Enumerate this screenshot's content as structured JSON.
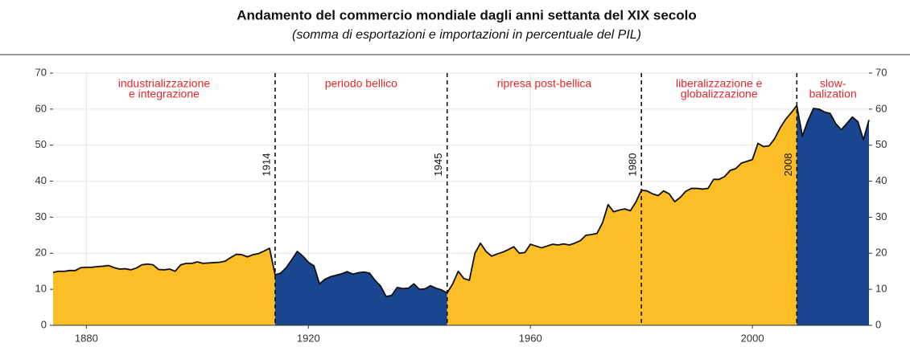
{
  "chart_data": {
    "type": "area",
    "title": "Andamento del commercio mondiale dagli anni settanta del XIX secolo",
    "subtitle": "(somma di esportazioni e importazioni in percentuale del PIL)",
    "x": [
      1874,
      1875,
      1876,
      1877,
      1878,
      1879,
      1880,
      1881,
      1882,
      1883,
      1884,
      1885,
      1886,
      1887,
      1888,
      1889,
      1890,
      1891,
      1892,
      1893,
      1894,
      1895,
      1896,
      1897,
      1898,
      1899,
      1900,
      1901,
      1902,
      1903,
      1904,
      1905,
      1906,
      1907,
      1908,
      1909,
      1910,
      1911,
      1912,
      1913,
      1914,
      1915,
      1916,
      1917,
      1918,
      1919,
      1920,
      1921,
      1922,
      1923,
      1924,
      1925,
      1926,
      1927,
      1928,
      1929,
      1930,
      1931,
      1932,
      1933,
      1934,
      1935,
      1936,
      1937,
      1938,
      1939,
      1940,
      1941,
      1942,
      1943,
      1944,
      1945,
      1946,
      1947,
      1948,
      1949,
      1950,
      1951,
      1952,
      1953,
      1954,
      1955,
      1956,
      1957,
      1958,
      1959,
      1960,
      1961,
      1962,
      1963,
      1964,
      1965,
      1966,
      1967,
      1968,
      1969,
      1970,
      1971,
      1972,
      1973,
      1974,
      1975,
      1976,
      1977,
      1978,
      1979,
      1980,
      1981,
      1982,
      1983,
      1984,
      1985,
      1986,
      1987,
      1988,
      1989,
      1990,
      1991,
      1992,
      1993,
      1994,
      1995,
      1996,
      1997,
      1998,
      1999,
      2000,
      2001,
      2002,
      2003,
      2004,
      2005,
      2006,
      2007,
      2008,
      2009,
      2010,
      2011,
      2012,
      2013,
      2014,
      2015,
      2016,
      2017,
      2018,
      2019,
      2020,
      2021
    ],
    "values": [
      14.7,
      15,
      15,
      15.2,
      15.2,
      16,
      16.1,
      16.1,
      16.3,
      16.4,
      16.6,
      16.0,
      15.6,
      15.7,
      15.4,
      15.9,
      16.8,
      17.0,
      16.8,
      15.5,
      15.4,
      15.6,
      15.0,
      16.8,
      17.2,
      17.2,
      17.6,
      17.2,
      17.3,
      17.4,
      17.5,
      17.8,
      18.8,
      19.7,
      19.6,
      19.0,
      19.6,
      19.9,
      20.6,
      21.4,
      14.0,
      14.5,
      16.0,
      18.2,
      20.5,
      19.2,
      17.5,
      16.5,
      11.5,
      12.8,
      13.5,
      13.9,
      14.3,
      14.9,
      14.2,
      14.6,
      14.8,
      14.5,
      12.5,
      10.9,
      8.0,
      8.3,
      10.5,
      10.2,
      10.3,
      11.5,
      10.0,
      10.1,
      11.0,
      10.3,
      9.8,
      9.0,
      11.5,
      15.0,
      13.0,
      12.5,
      20.0,
      22.8,
      20.5,
      19.2,
      19.8,
      20.3,
      21.0,
      21.8,
      20.0,
      20.2,
      22.5,
      22.0,
      21.5,
      22.0,
      22.5,
      22.3,
      22.6,
      22.3,
      22.8,
      23.5,
      25.0,
      25.2,
      25.5,
      28.5,
      33.5,
      31.5,
      32.0,
      32.3,
      31.8,
      34.2,
      37.5,
      37.3,
      36.5,
      36.0,
      37.3,
      36.5,
      34.3,
      35.5,
      37.2,
      38.0,
      38.0,
      37.8,
      38.0,
      40.5,
      40.5,
      41.3,
      43.0,
      43.5,
      45.0,
      45.5,
      46.0,
      50.5,
      49.6,
      49.8,
      51.8,
      54.8,
      57.2,
      59.0,
      61.0,
      52.5,
      56.8,
      60.2,
      60.0,
      59.2,
      58.8,
      56.0,
      54.3,
      56.0,
      57.8,
      56.5,
      51.5,
      57.0
    ],
    "markers": [
      1914,
      1945,
      1980,
      2008
    ],
    "periods": [
      {
        "label": [
          "industrializzazione",
          "e integrazione"
        ],
        "color": "#fbbe26"
      },
      {
        "label": [
          "periodo bellico"
        ],
        "color": "#1a4690"
      },
      {
        "label": [
          "ripresa post-bellica"
        ],
        "color": "#fbbe26"
      },
      {
        "label": [
          "liberalizzazione e",
          "globalizzazione"
        ],
        "color": "#fbbe26"
      },
      {
        "label": [
          "slow-",
          "balization"
        ],
        "color": "#1a4690"
      }
    ],
    "xlim": [
      1874,
      2021
    ],
    "xticks": [
      1880,
      1920,
      1960,
      2000
    ],
    "ylim": [
      0,
      70
    ],
    "yticks": [
      0,
      10,
      20,
      30,
      40,
      50,
      60,
      70
    ],
    "grid": true
  }
}
